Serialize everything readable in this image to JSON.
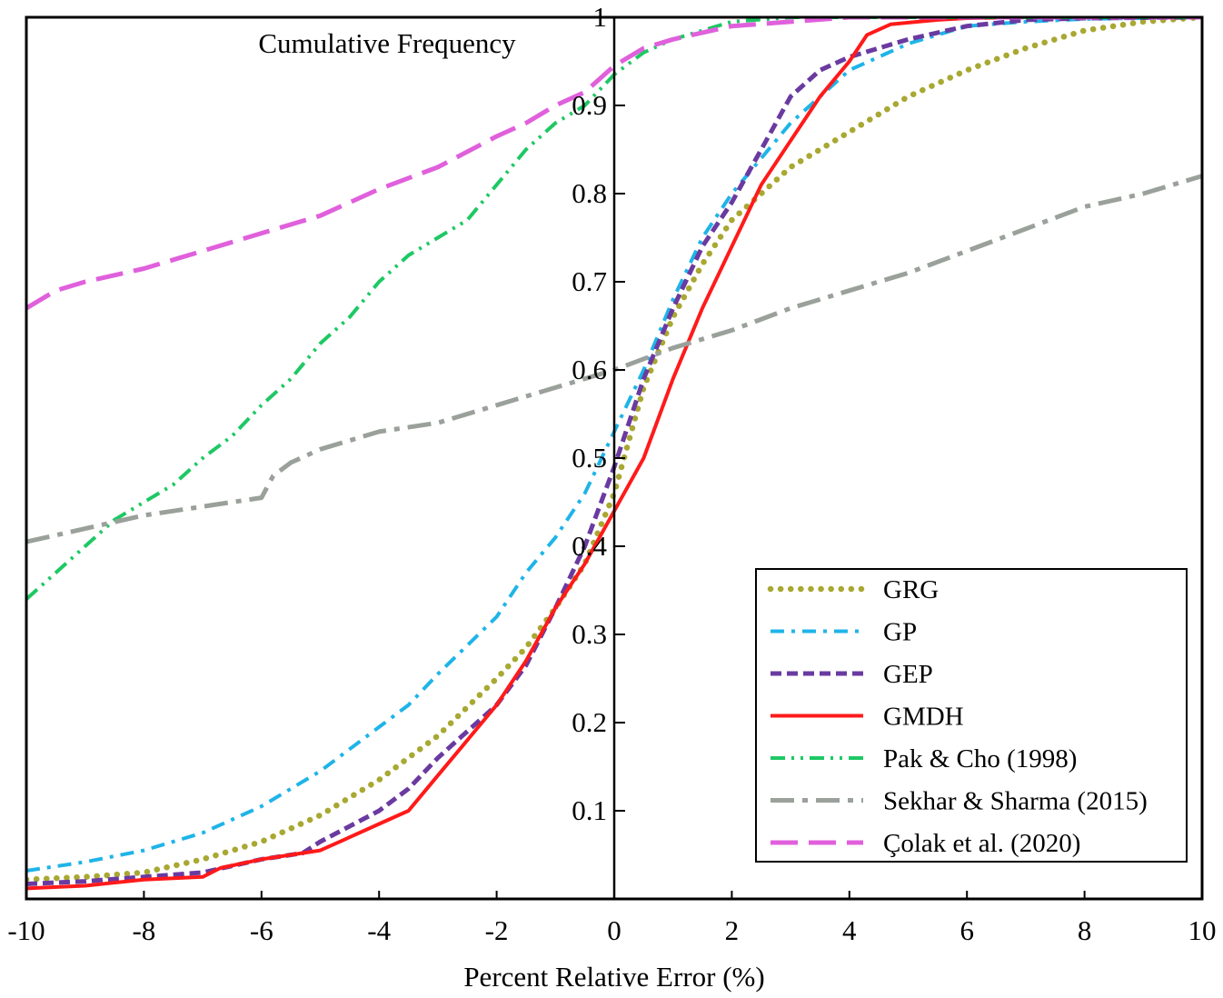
{
  "chart_data": {
    "type": "line",
    "title": "",
    "ylabel": "Cumulative Frequency",
    "xlabel": "Percent Relative Error (%)",
    "xlim": [
      -10,
      10
    ],
    "ylim": [
      0,
      1
    ],
    "xticks": [
      -10,
      -8,
      -6,
      -4,
      -2,
      0,
      2,
      4,
      6,
      8,
      10
    ],
    "xtick_labels": [
      "-10",
      "-8",
      "-6",
      "-4",
      "-2",
      "0",
      "2",
      "4",
      "6",
      "8",
      "10"
    ],
    "yticks": [
      0.1,
      0.2,
      0.3,
      0.4,
      0.5,
      0.6,
      0.7,
      0.8,
      0.9,
      1
    ],
    "ytick_labels": [
      "0.1",
      "0.2",
      "0.3",
      "0.4",
      "0.5",
      "0.6",
      "0.7",
      "0.8",
      "0.9",
      "1"
    ],
    "legend_position": "bottom-right",
    "series": [
      {
        "name": "GRG",
        "color": "#a8a832",
        "style": "dotted",
        "points": [
          [
            -10,
            0.022
          ],
          [
            -9,
            0.025
          ],
          [
            -8,
            0.03
          ],
          [
            -7,
            0.045
          ],
          [
            -6,
            0.065
          ],
          [
            -5,
            0.095
          ],
          [
            -4,
            0.135
          ],
          [
            -3,
            0.185
          ],
          [
            -2,
            0.25
          ],
          [
            -1.5,
            0.285
          ],
          [
            -1,
            0.33
          ],
          [
            -0.5,
            0.38
          ],
          [
            0,
            0.46
          ],
          [
            0.5,
            0.58
          ],
          [
            1,
            0.66
          ],
          [
            1.5,
            0.72
          ],
          [
            2,
            0.77
          ],
          [
            3,
            0.83
          ],
          [
            4,
            0.87
          ],
          [
            5,
            0.91
          ],
          [
            6,
            0.94
          ],
          [
            7,
            0.965
          ],
          [
            8,
            0.985
          ],
          [
            9,
            0.995
          ],
          [
            10,
            1.0
          ]
        ]
      },
      {
        "name": "GP",
        "color": "#1fb4e8",
        "style": "dash-dot",
        "points": [
          [
            -10,
            0.032
          ],
          [
            -9,
            0.042
          ],
          [
            -8,
            0.055
          ],
          [
            -7,
            0.075
          ],
          [
            -6,
            0.105
          ],
          [
            -5,
            0.145
          ],
          [
            -4,
            0.195
          ],
          [
            -3.5,
            0.22
          ],
          [
            -3,
            0.255
          ],
          [
            -2,
            0.32
          ],
          [
            -1.5,
            0.37
          ],
          [
            -1,
            0.41
          ],
          [
            -0.5,
            0.46
          ],
          [
            0,
            0.53
          ],
          [
            0.5,
            0.6
          ],
          [
            1,
            0.68
          ],
          [
            1.5,
            0.75
          ],
          [
            2,
            0.8
          ],
          [
            3,
            0.88
          ],
          [
            4,
            0.94
          ],
          [
            5,
            0.97
          ],
          [
            6,
            0.99
          ],
          [
            7,
            0.995
          ],
          [
            8,
            0.998
          ],
          [
            10,
            1.0
          ]
        ]
      },
      {
        "name": "GEP",
        "color": "#6a3aa0",
        "style": "dashed",
        "points": [
          [
            -10,
            0.017
          ],
          [
            -9,
            0.02
          ],
          [
            -8,
            0.025
          ],
          [
            -7,
            0.03
          ],
          [
            -6,
            0.045
          ],
          [
            -5.3,
            0.052
          ],
          [
            -5,
            0.065
          ],
          [
            -4,
            0.1
          ],
          [
            -3.5,
            0.125
          ],
          [
            -3,
            0.16
          ],
          [
            -2,
            0.22
          ],
          [
            -1.5,
            0.265
          ],
          [
            -1,
            0.33
          ],
          [
            -0.5,
            0.4
          ],
          [
            0,
            0.49
          ],
          [
            0.5,
            0.59
          ],
          [
            1,
            0.67
          ],
          [
            1.5,
            0.74
          ],
          [
            2,
            0.79
          ],
          [
            2.5,
            0.85
          ],
          [
            3,
            0.91
          ],
          [
            3.5,
            0.94
          ],
          [
            4,
            0.955
          ],
          [
            5,
            0.975
          ],
          [
            6,
            0.99
          ],
          [
            7,
            0.997
          ],
          [
            8,
            0.999
          ],
          [
            10,
            1.0
          ]
        ]
      },
      {
        "name": "GMDH",
        "color": "#ff1a1a",
        "style": "solid",
        "points": [
          [
            -10,
            0.012
          ],
          [
            -9,
            0.015
          ],
          [
            -8,
            0.022
          ],
          [
            -7,
            0.025
          ],
          [
            -6.7,
            0.035
          ],
          [
            -6,
            0.045
          ],
          [
            -5,
            0.055
          ],
          [
            -4.5,
            0.07
          ],
          [
            -4,
            0.085
          ],
          [
            -3.5,
            0.1
          ],
          [
            -3,
            0.14
          ],
          [
            -2.5,
            0.18
          ],
          [
            -2,
            0.22
          ],
          [
            -1.5,
            0.27
          ],
          [
            -1,
            0.33
          ],
          [
            -0.5,
            0.38
          ],
          [
            0,
            0.44
          ],
          [
            0.5,
            0.5
          ],
          [
            1,
            0.59
          ],
          [
            1.5,
            0.67
          ],
          [
            2,
            0.74
          ],
          [
            2.5,
            0.81
          ],
          [
            3,
            0.86
          ],
          [
            3.5,
            0.91
          ],
          [
            4,
            0.95
          ],
          [
            4.3,
            0.98
          ],
          [
            4.7,
            0.992
          ],
          [
            5.5,
            0.997
          ],
          [
            6,
            0.999
          ],
          [
            7,
            1.0
          ],
          [
            10,
            1.0
          ]
        ]
      },
      {
        "name": "Pak & Cho (1998)",
        "color": "#1ec864",
        "style": "dash-dot-dot",
        "points": [
          [
            -10,
            0.34
          ],
          [
            -9.5,
            0.37
          ],
          [
            -9,
            0.4
          ],
          [
            -8.5,
            0.43
          ],
          [
            -8,
            0.45
          ],
          [
            -7.5,
            0.47
          ],
          [
            -7,
            0.5
          ],
          [
            -6.5,
            0.525
          ],
          [
            -6,
            0.56
          ],
          [
            -5.5,
            0.59
          ],
          [
            -5,
            0.63
          ],
          [
            -4.5,
            0.66
          ],
          [
            -4,
            0.7
          ],
          [
            -3.5,
            0.73
          ],
          [
            -3,
            0.75
          ],
          [
            -2.5,
            0.77
          ],
          [
            -2,
            0.81
          ],
          [
            -1.5,
            0.85
          ],
          [
            -1,
            0.88
          ],
          [
            -0.5,
            0.9
          ],
          [
            0,
            0.935
          ],
          [
            0.5,
            0.96
          ],
          [
            1,
            0.975
          ],
          [
            1.5,
            0.985
          ],
          [
            2,
            0.995
          ],
          [
            3,
            1.0
          ],
          [
            10,
            1.0
          ]
        ]
      },
      {
        "name": "Sekhar & Sharma (2015)",
        "color": "#9aa09a",
        "style": "long-dash-dot",
        "points": [
          [
            -10,
            0.405
          ],
          [
            -9,
            0.42
          ],
          [
            -8,
            0.435
          ],
          [
            -7,
            0.445
          ],
          [
            -6,
            0.455
          ],
          [
            -5.8,
            0.48
          ],
          [
            -5.5,
            0.495
          ],
          [
            -5,
            0.51
          ],
          [
            -4.5,
            0.52
          ],
          [
            -4,
            0.53
          ],
          [
            -3,
            0.54
          ],
          [
            -2,
            0.56
          ],
          [
            -1,
            0.58
          ],
          [
            0,
            0.6
          ],
          [
            1,
            0.625
          ],
          [
            2,
            0.645
          ],
          [
            3,
            0.67
          ],
          [
            4,
            0.69
          ],
          [
            5,
            0.71
          ],
          [
            6,
            0.735
          ],
          [
            7,
            0.76
          ],
          [
            8,
            0.785
          ],
          [
            9,
            0.8
          ],
          [
            10,
            0.82
          ]
        ]
      },
      {
        "name": "Çolak et al. (2020)",
        "color": "#e060dc",
        "style": "long-dash",
        "points": [
          [
            -10,
            0.67
          ],
          [
            -9.5,
            0.69
          ],
          [
            -9,
            0.7
          ],
          [
            -8,
            0.715
          ],
          [
            -7,
            0.735
          ],
          [
            -6,
            0.755
          ],
          [
            -5,
            0.775
          ],
          [
            -4,
            0.805
          ],
          [
            -3,
            0.83
          ],
          [
            -2,
            0.865
          ],
          [
            -1.5,
            0.88
          ],
          [
            -1,
            0.9
          ],
          [
            -0.5,
            0.915
          ],
          [
            0,
            0.945
          ],
          [
            0.5,
            0.965
          ],
          [
            1,
            0.975
          ],
          [
            2,
            0.99
          ],
          [
            3,
            0.995
          ],
          [
            4,
            1.0
          ],
          [
            10,
            1.0
          ]
        ]
      }
    ]
  }
}
